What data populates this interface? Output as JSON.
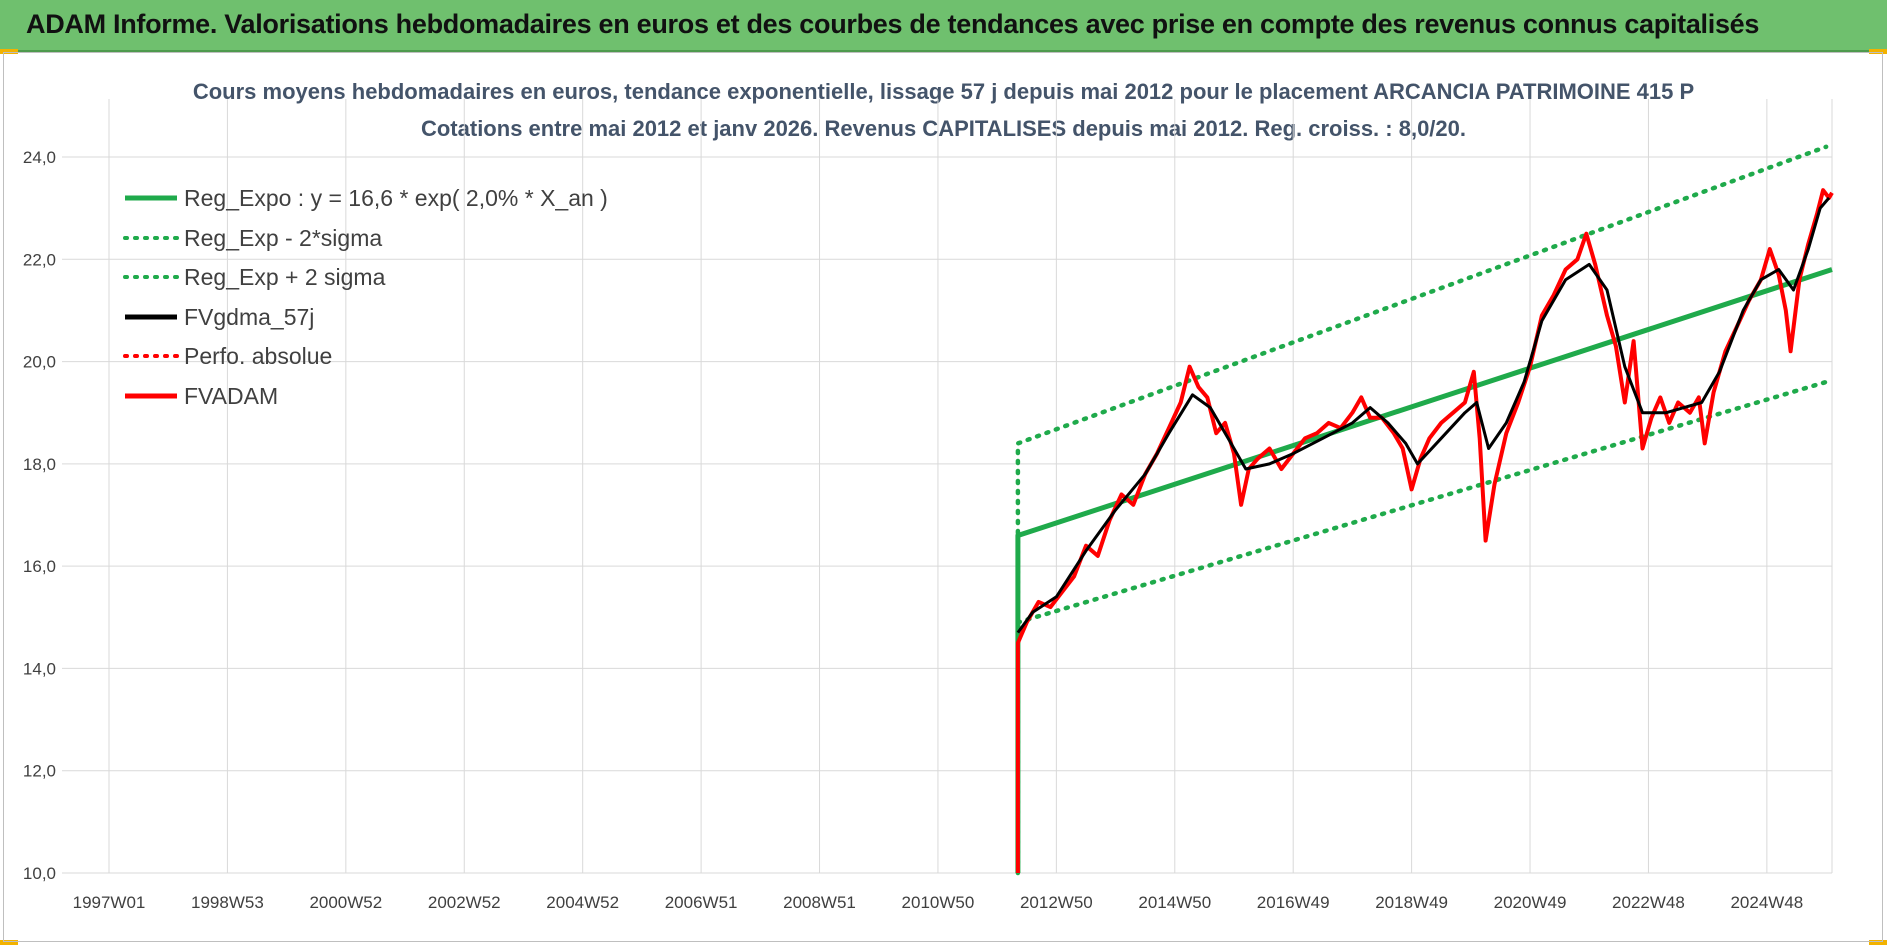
{
  "header": {
    "title": "ADAM Informe. Valorisations hebdomadaires en euros et des courbes de tendances avec prise en compte des revenus connus capitalisés"
  },
  "chart_data": {
    "type": "line",
    "title": "Cours moyens hebdomadaires en euros, tendance exponentielle, lissage 57 j depuis mai 2012 pour le placement ARCANCIA PATRIMOINE 415 P",
    "subtitle": "Cotations entre mai 2012 et janv 2026. Revenus CAPITALISES depuis mai 2012. Reg. croiss. : 8,0/20.",
    "xlabel": "",
    "ylabel": "",
    "ylim": [
      10,
      24.6
    ],
    "xlim": [
      1997.0,
      2026.1
    ],
    "y_ticks": [
      "10,0",
      "12,0",
      "14,0",
      "16,0",
      "18,0",
      "20,0",
      "22,0",
      "24,0"
    ],
    "y_tick_values": [
      10,
      12,
      14,
      16,
      18,
      20,
      22,
      24
    ],
    "x_ticks": [
      "1997W01",
      "1998W53",
      "2000W52",
      "2002W52",
      "2004W52",
      "2006W51",
      "2008W51",
      "2010W50",
      "2012W50",
      "2014W50",
      "2016W49",
      "2018W49",
      "2020W49",
      "2022W48",
      "2024W48"
    ],
    "x_tick_values": [
      1997.0,
      1999.0,
      2001.0,
      2003.0,
      2005.0,
      2007.0,
      2009.0,
      2011.0,
      2013.0,
      2015.0,
      2017.0,
      2019.0,
      2021.0,
      2023.0,
      2025.0
    ],
    "grid": true,
    "legend_position": "top-left",
    "series": [
      {
        "name": "Reg_Expo : y = 16,6 * exp( 2,0% *  X_an )",
        "color": "#1faa4b",
        "style": "solid",
        "points": [
          [
            2012.35,
            10.0
          ],
          [
            2012.35,
            16.6
          ],
          [
            2026.1,
            21.8
          ]
        ]
      },
      {
        "name": "Reg_Exp - 2*sigma",
        "color": "#1faa4b",
        "style": "dotted",
        "points": [
          [
            2012.35,
            14.9
          ],
          [
            2026.0,
            19.6
          ]
        ]
      },
      {
        "name": "Reg_Exp + 2 sigma",
        "color": "#1faa4b",
        "style": "dotted",
        "points": [
          [
            2012.35,
            10.0
          ],
          [
            2012.35,
            18.4
          ],
          [
            2026.0,
            24.2
          ]
        ]
      },
      {
        "name": "FVgdma_57j",
        "color": "#000000",
        "style": "solid",
        "points": [
          [
            2012.35,
            14.7
          ],
          [
            2012.6,
            15.1
          ],
          [
            2013.0,
            15.4
          ],
          [
            2013.5,
            16.3
          ],
          [
            2014.0,
            17.1
          ],
          [
            2014.5,
            17.8
          ],
          [
            2014.9,
            18.6
          ],
          [
            2015.3,
            19.35
          ],
          [
            2015.6,
            19.1
          ],
          [
            2015.9,
            18.5
          ],
          [
            2016.2,
            17.9
          ],
          [
            2016.6,
            18.0
          ],
          [
            2017.0,
            18.2
          ],
          [
            2017.5,
            18.5
          ],
          [
            2018.0,
            18.8
          ],
          [
            2018.3,
            19.1
          ],
          [
            2018.6,
            18.8
          ],
          [
            2018.9,
            18.4
          ],
          [
            2019.1,
            18.0
          ],
          [
            2019.5,
            18.5
          ],
          [
            2019.9,
            19.0
          ],
          [
            2020.1,
            19.2
          ],
          [
            2020.3,
            18.3
          ],
          [
            2020.6,
            18.8
          ],
          [
            2020.9,
            19.6
          ],
          [
            2021.2,
            20.8
          ],
          [
            2021.6,
            21.6
          ],
          [
            2022.0,
            21.9
          ],
          [
            2022.3,
            21.4
          ],
          [
            2022.6,
            19.9
          ],
          [
            2022.9,
            19.0
          ],
          [
            2023.3,
            19.0
          ],
          [
            2023.6,
            19.1
          ],
          [
            2023.9,
            19.2
          ],
          [
            2024.2,
            19.8
          ],
          [
            2024.6,
            21.0
          ],
          [
            2024.9,
            21.6
          ],
          [
            2025.2,
            21.8
          ],
          [
            2025.45,
            21.4
          ],
          [
            2025.7,
            22.2
          ],
          [
            2025.9,
            23.0
          ],
          [
            2026.05,
            23.2
          ]
        ]
      },
      {
        "name": "Perfo. absolue",
        "color": "#ff0000",
        "style": "dotted",
        "points": []
      },
      {
        "name": "FVADAM",
        "color": "#ff0000",
        "style": "solid",
        "points": [
          [
            2012.35,
            10.0
          ],
          [
            2012.35,
            14.5
          ],
          [
            2012.5,
            14.9
          ],
          [
            2012.7,
            15.3
          ],
          [
            2012.9,
            15.2
          ],
          [
            2013.1,
            15.5
          ],
          [
            2013.3,
            15.8
          ],
          [
            2013.5,
            16.4
          ],
          [
            2013.7,
            16.2
          ],
          [
            2013.9,
            16.9
          ],
          [
            2014.1,
            17.4
          ],
          [
            2014.3,
            17.2
          ],
          [
            2014.5,
            17.8
          ],
          [
            2014.7,
            18.2
          ],
          [
            2014.9,
            18.7
          ],
          [
            2015.1,
            19.2
          ],
          [
            2015.25,
            19.9
          ],
          [
            2015.4,
            19.5
          ],
          [
            2015.55,
            19.3
          ],
          [
            2015.7,
            18.6
          ],
          [
            2015.85,
            18.8
          ],
          [
            2016.0,
            18.2
          ],
          [
            2016.12,
            17.2
          ],
          [
            2016.25,
            17.9
          ],
          [
            2016.4,
            18.1
          ],
          [
            2016.6,
            18.3
          ],
          [
            2016.8,
            17.9
          ],
          [
            2017.0,
            18.2
          ],
          [
            2017.2,
            18.5
          ],
          [
            2017.4,
            18.6
          ],
          [
            2017.6,
            18.8
          ],
          [
            2017.8,
            18.7
          ],
          [
            2018.0,
            19.0
          ],
          [
            2018.15,
            19.3
          ],
          [
            2018.3,
            18.9
          ],
          [
            2018.5,
            18.9
          ],
          [
            2018.7,
            18.6
          ],
          [
            2018.85,
            18.3
          ],
          [
            2019.0,
            17.5
          ],
          [
            2019.15,
            18.1
          ],
          [
            2019.3,
            18.5
          ],
          [
            2019.5,
            18.8
          ],
          [
            2019.7,
            19.0
          ],
          [
            2019.9,
            19.2
          ],
          [
            2020.05,
            19.8
          ],
          [
            2020.15,
            18.5
          ],
          [
            2020.25,
            16.5
          ],
          [
            2020.4,
            17.6
          ],
          [
            2020.6,
            18.6
          ],
          [
            2020.8,
            19.2
          ],
          [
            2021.0,
            19.9
          ],
          [
            2021.2,
            20.9
          ],
          [
            2021.4,
            21.3
          ],
          [
            2021.6,
            21.8
          ],
          [
            2021.8,
            22.0
          ],
          [
            2021.95,
            22.5
          ],
          [
            2022.1,
            21.9
          ],
          [
            2022.3,
            20.9
          ],
          [
            2022.45,
            20.3
          ],
          [
            2022.6,
            19.2
          ],
          [
            2022.75,
            20.4
          ],
          [
            2022.9,
            18.3
          ],
          [
            2023.05,
            18.9
          ],
          [
            2023.2,
            19.3
          ],
          [
            2023.35,
            18.8
          ],
          [
            2023.5,
            19.2
          ],
          [
            2023.7,
            19.0
          ],
          [
            2023.85,
            19.3
          ],
          [
            2023.95,
            18.4
          ],
          [
            2024.1,
            19.4
          ],
          [
            2024.3,
            20.2
          ],
          [
            2024.5,
            20.7
          ],
          [
            2024.7,
            21.2
          ],
          [
            2024.9,
            21.6
          ],
          [
            2025.05,
            22.2
          ],
          [
            2025.2,
            21.7
          ],
          [
            2025.32,
            21.0
          ],
          [
            2025.4,
            20.2
          ],
          [
            2025.55,
            21.6
          ],
          [
            2025.7,
            22.3
          ],
          [
            2025.85,
            22.9
          ],
          [
            2025.95,
            23.35
          ],
          [
            2026.05,
            23.2
          ],
          [
            2026.1,
            23.3
          ]
        ]
      }
    ]
  }
}
